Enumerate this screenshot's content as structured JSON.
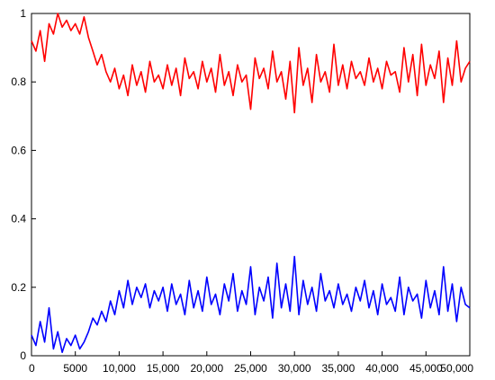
{
  "chart_data": {
    "type": "line",
    "title": "",
    "xlabel": "",
    "ylabel": "",
    "xlim": [
      0,
      50000
    ],
    "ylim": [
      0,
      1
    ],
    "grid": false,
    "legend": "none",
    "x_ticks": [
      {
        "value": 0,
        "label": "0"
      },
      {
        "value": 5000,
        "label": "5000"
      },
      {
        "value": 10000,
        "label": "10,000"
      },
      {
        "value": 15000,
        "label": "15,000"
      },
      {
        "value": 20000,
        "label": "20,000"
      },
      {
        "value": 25000,
        "label": "25,000"
      },
      {
        "value": 30000,
        "label": "30,000"
      },
      {
        "value": 35000,
        "label": "35,000"
      },
      {
        "value": 40000,
        "label": "40,000"
      },
      {
        "value": 45000,
        "label": "45,000"
      },
      {
        "value": 50000,
        "label": "50,000"
      }
    ],
    "y_ticks": [
      {
        "value": 0,
        "label": "0"
      },
      {
        "value": 0.2,
        "label": "0.2"
      },
      {
        "value": 0.4,
        "label": "0.4"
      },
      {
        "value": 0.6,
        "label": "0.6"
      },
      {
        "value": 0.8,
        "label": "0.8"
      },
      {
        "value": 1,
        "label": "1"
      }
    ],
    "series": [
      {
        "color": "#ff0000",
        "x": [
          0,
          500,
          1000,
          1500,
          2000,
          2500,
          3000,
          3500,
          4000,
          4500,
          5000,
          5500,
          6000,
          6500,
          7000,
          7500,
          8000,
          8500,
          9000,
          9500,
          10000,
          10500,
          11000,
          11500,
          12000,
          12500,
          13000,
          13500,
          14000,
          14500,
          15000,
          15500,
          16000,
          16500,
          17000,
          17500,
          18000,
          18500,
          19000,
          19500,
          20000,
          20500,
          21000,
          21500,
          22000,
          22500,
          23000,
          23500,
          24000,
          24500,
          25000,
          25500,
          26000,
          26500,
          27000,
          27500,
          28000,
          28500,
          29000,
          29500,
          30000,
          30500,
          31000,
          31500,
          32000,
          32500,
          33000,
          33500,
          34000,
          34500,
          35000,
          35500,
          36000,
          36500,
          37000,
          37500,
          38000,
          38500,
          39000,
          39500,
          40000,
          40500,
          41000,
          41500,
          42000,
          42500,
          43000,
          43500,
          44000,
          44500,
          45000,
          45500,
          46000,
          46500,
          47000,
          47500,
          48000,
          48500,
          49000,
          49500,
          50000
        ],
        "y": [
          0.92,
          0.89,
          0.95,
          0.86,
          0.97,
          0.94,
          1.0,
          0.96,
          0.98,
          0.95,
          0.97,
          0.94,
          0.99,
          0.93,
          0.89,
          0.85,
          0.88,
          0.83,
          0.8,
          0.84,
          0.78,
          0.82,
          0.76,
          0.85,
          0.79,
          0.83,
          0.77,
          0.86,
          0.8,
          0.82,
          0.78,
          0.85,
          0.79,
          0.84,
          0.76,
          0.87,
          0.81,
          0.83,
          0.78,
          0.86,
          0.8,
          0.84,
          0.77,
          0.88,
          0.79,
          0.83,
          0.76,
          0.85,
          0.8,
          0.82,
          0.72,
          0.87,
          0.81,
          0.84,
          0.78,
          0.89,
          0.8,
          0.83,
          0.75,
          0.86,
          0.71,
          0.9,
          0.79,
          0.84,
          0.74,
          0.88,
          0.8,
          0.83,
          0.77,
          0.91,
          0.79,
          0.85,
          0.78,
          0.86,
          0.81,
          0.83,
          0.79,
          0.87,
          0.8,
          0.84,
          0.78,
          0.86,
          0.82,
          0.83,
          0.77,
          0.9,
          0.8,
          0.88,
          0.76,
          0.91,
          0.79,
          0.85,
          0.81,
          0.89,
          0.74,
          0.87,
          0.79,
          0.92,
          0.8,
          0.84,
          0.86
        ]
      },
      {
        "color": "#0000ff",
        "x": [
          0,
          500,
          1000,
          1500,
          2000,
          2500,
          3000,
          3500,
          4000,
          4500,
          5000,
          5500,
          6000,
          6500,
          7000,
          7500,
          8000,
          8500,
          9000,
          9500,
          10000,
          10500,
          11000,
          11500,
          12000,
          12500,
          13000,
          13500,
          14000,
          14500,
          15000,
          15500,
          16000,
          16500,
          17000,
          17500,
          18000,
          18500,
          19000,
          19500,
          20000,
          20500,
          21000,
          21500,
          22000,
          22500,
          23000,
          23500,
          24000,
          24500,
          25000,
          25500,
          26000,
          26500,
          27000,
          27500,
          28000,
          28500,
          29000,
          29500,
          30000,
          30500,
          31000,
          31500,
          32000,
          32500,
          33000,
          33500,
          34000,
          34500,
          35000,
          35500,
          36000,
          36500,
          37000,
          37500,
          38000,
          38500,
          39000,
          39500,
          40000,
          40500,
          41000,
          41500,
          42000,
          42500,
          43000,
          43500,
          44000,
          44500,
          45000,
          45500,
          46000,
          46500,
          47000,
          47500,
          48000,
          48500,
          49000,
          49500,
          50000
        ],
        "y": [
          0.06,
          0.03,
          0.1,
          0.04,
          0.14,
          0.02,
          0.07,
          0.01,
          0.05,
          0.03,
          0.06,
          0.02,
          0.04,
          0.07,
          0.11,
          0.09,
          0.13,
          0.1,
          0.16,
          0.12,
          0.19,
          0.14,
          0.22,
          0.15,
          0.2,
          0.17,
          0.21,
          0.14,
          0.19,
          0.16,
          0.2,
          0.13,
          0.21,
          0.15,
          0.18,
          0.12,
          0.22,
          0.14,
          0.19,
          0.13,
          0.23,
          0.15,
          0.18,
          0.12,
          0.21,
          0.16,
          0.24,
          0.13,
          0.19,
          0.15,
          0.26,
          0.12,
          0.2,
          0.16,
          0.23,
          0.11,
          0.27,
          0.14,
          0.21,
          0.13,
          0.29,
          0.12,
          0.22,
          0.15,
          0.2,
          0.13,
          0.24,
          0.16,
          0.19,
          0.14,
          0.21,
          0.15,
          0.18,
          0.13,
          0.2,
          0.16,
          0.22,
          0.14,
          0.19,
          0.12,
          0.21,
          0.15,
          0.17,
          0.13,
          0.23,
          0.12,
          0.2,
          0.16,
          0.18,
          0.11,
          0.22,
          0.14,
          0.19,
          0.12,
          0.26,
          0.13,
          0.21,
          0.1,
          0.2,
          0.15,
          0.14
        ]
      }
    ]
  }
}
